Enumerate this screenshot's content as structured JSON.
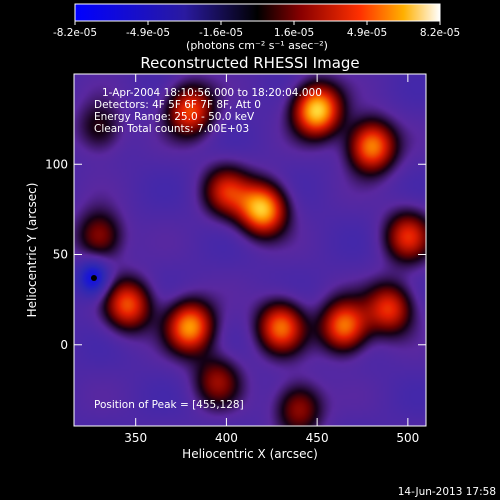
{
  "colorbar": {
    "tick_labels": [
      "-8.2e-05",
      "-4.9e-05",
      "-1.6e-05",
      "1.6e-05",
      "4.9e-05",
      "8.2e-05"
    ],
    "unit_label": "(photons cm⁻² s⁻¹ asec⁻²)",
    "range": [
      -8.2e-05,
      8.2e-05
    ]
  },
  "chart_data": {
    "type": "heatmap",
    "title": "Reconstructed RHESSI Image",
    "xlabel": "Heliocentric X (arcsec)",
    "ylabel": "Heliocentric Y (arcsec)",
    "xlim": [
      316,
      510
    ],
    "ylim": [
      -45,
      150
    ],
    "x_ticks": [
      350,
      400,
      450,
      500
    ],
    "y_ticks": [
      0,
      50,
      100
    ],
    "annotations": [
      "1-Apr-2004 18:10:56.000 to 18:20:04.000",
      "Detectors: 4F 5F 6F 7F 8F, Att 0",
      "Energy Range: 25.0 - 50.0 keV",
      "Clean     Total counts: 7.00E+03"
    ],
    "peak_label": "Position of Peak = [455,128]",
    "peak": [
      455,
      128
    ],
    "minimum": [
      327,
      37
    ],
    "bright_sources": [
      {
        "x": 450,
        "y": 130,
        "level": 1.0
      },
      {
        "x": 420,
        "y": 75,
        "level": 0.95
      },
      {
        "x": 380,
        "y": 10,
        "level": 0.85
      },
      {
        "x": 346,
        "y": 22,
        "level": 0.7
      },
      {
        "x": 430,
        "y": 10,
        "level": 0.75
      },
      {
        "x": 465,
        "y": 10,
        "level": 0.8
      },
      {
        "x": 490,
        "y": 20,
        "level": 0.65
      },
      {
        "x": 500,
        "y": 60,
        "level": 0.6
      },
      {
        "x": 480,
        "y": 110,
        "level": 0.85
      },
      {
        "x": 380,
        "y": 130,
        "level": 0.7
      },
      {
        "x": 400,
        "y": 85,
        "level": 0.55
      },
      {
        "x": 330,
        "y": 60,
        "level": 0.5
      },
      {
        "x": 395,
        "y": -20,
        "level": 0.45
      },
      {
        "x": 440,
        "y": -35,
        "level": 0.5
      },
      {
        "x": 330,
        "y": 120,
        "level": 0.35
      }
    ]
  },
  "footer_timestamp": "14-Jun-2013 17:58"
}
